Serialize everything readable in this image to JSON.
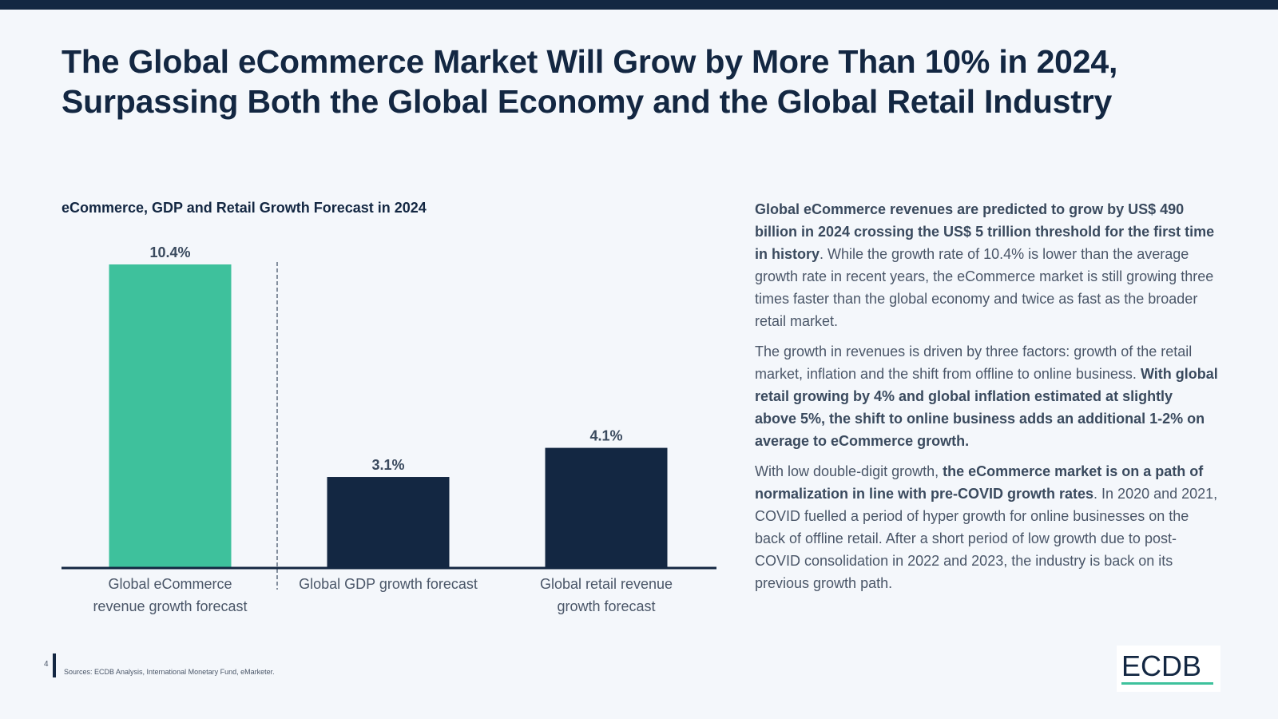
{
  "header": {
    "title_line1": "The Global eCommerce Market Will Grow by More Than 10% in 2024,",
    "title_line2": "Surpassing Both the Global Economy and the Global Retail Industry"
  },
  "colors": {
    "navy": "#132742",
    "green": "#3ec19c",
    "background": "#f4f7fb"
  },
  "chart_data": {
    "type": "bar",
    "title": "eCommerce, GDP and Retail Growth Forecast in 2024",
    "categories": [
      "Global eCommerce revenue growth forecast",
      "Global GDP growth forecast",
      "Global retail revenue growth forecast"
    ],
    "category_lines": [
      [
        "Global eCommerce",
        "revenue growth forecast"
      ],
      [
        "Global GDP growth forecast"
      ],
      [
        "Global retail revenue",
        "growth forecast"
      ]
    ],
    "values": [
      10.4,
      3.1,
      4.1
    ],
    "value_labels": [
      "10.4%",
      "3.1%",
      "4.1%"
    ],
    "bar_colors": [
      "#3ec19c",
      "#132742",
      "#132742"
    ],
    "unit": "%",
    "ylim": [
      0,
      10.4
    ],
    "grid": false,
    "separator_after_category": 0
  },
  "body": {
    "p1_bold": "Global eCommerce revenues are predicted to grow by US$ 490 billion in 2024 crossing the US$ 5 trillion threshold for the first time in history",
    "p1_rest": ". While the growth rate of 10.4% is lower than the average growth rate in recent years, the eCommerce market is still growing three times faster than the global economy and twice as fast as the broader retail market.",
    "p2_plain": "The growth in revenues is driven by three factors: growth of the retail market, inflation and the shift from offline to online business. ",
    "p2_bold": "With global retail growing by 4% and global inflation estimated at slightly above 5%, the shift to online business adds an additional 1-2% on average to eCommerce growth.",
    "p3_plain": "With low double-digit growth, ",
    "p3_bold": "the eCommerce market is on a path of normalization in line with pre-COVID growth rates",
    "p3_rest": ". In 2020 and 2021, COVID fuelled a period of hyper growth for online businesses on the back of offline retail. After a short period of low growth due to post-COVID consolidation in 2022 and 2023, the industry is back on its previous growth path."
  },
  "footer": {
    "page_number": "4",
    "sources": "Sources:    ECDB Analysis, International Monetary Fund, eMarketer.",
    "logo": "ECDB"
  }
}
